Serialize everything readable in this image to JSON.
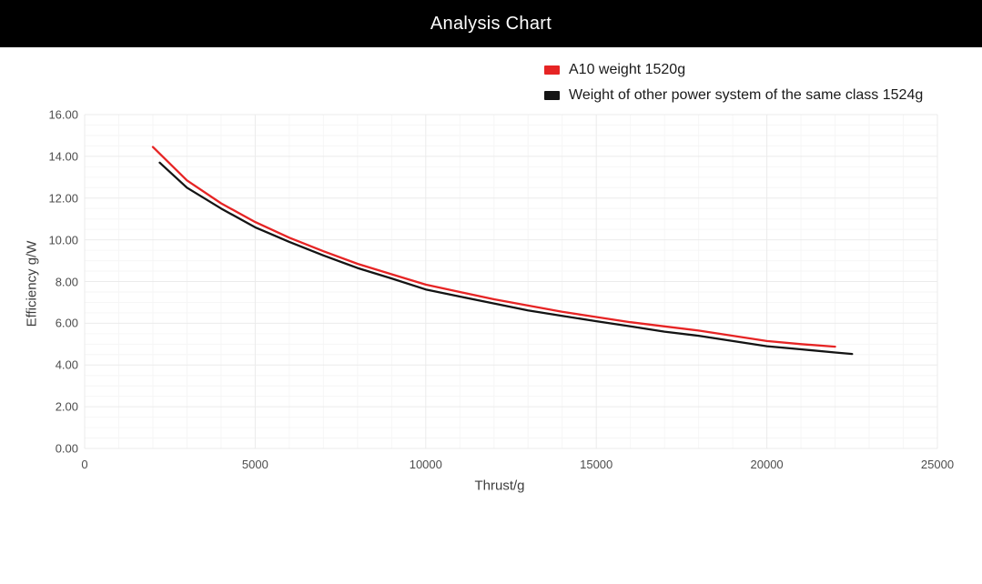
{
  "header": {
    "title": "Analysis Chart"
  },
  "colors": {
    "header_bg": "#000000",
    "header_text": "#ffffff",
    "series_red": "#e62424",
    "series_black": "#141414",
    "grid_major": "#ebebeb",
    "grid_minor": "#f6f6f6",
    "tick_text": "#4d4d4d"
  },
  "chart_data": {
    "type": "line",
    "title": "Analysis Chart",
    "xlabel": "Thrust/g",
    "ylabel": "Efficiency g/W",
    "xlim": [
      0,
      25000
    ],
    "ylim": [
      0,
      16
    ],
    "grid": true,
    "legend_position": "top-right",
    "x_ticks": {
      "values": [
        0,
        5000,
        10000,
        15000,
        20000,
        25000
      ],
      "labels": [
        "0",
        "5000",
        "10000",
        "15000",
        "20000",
        "25000"
      ]
    },
    "y_ticks": {
      "values": [
        0,
        2,
        4,
        6,
        8,
        10,
        12,
        14,
        16
      ],
      "labels": [
        "0.00",
        "2.00",
        "4.00",
        "6.00",
        "8.00",
        "10.00",
        "12.00",
        "14.00",
        "16.00"
      ]
    },
    "x_minor_step": 1000,
    "y_minor_step": 0.5,
    "series": [
      {
        "name": "A10 weight 1520g",
        "color": "#e62424",
        "points": [
          [
            2000,
            14.45
          ],
          [
            3000,
            12.85
          ],
          [
            4000,
            11.75
          ],
          [
            5000,
            10.85
          ],
          [
            6000,
            10.1
          ],
          [
            7000,
            9.45
          ],
          [
            8000,
            8.85
          ],
          [
            9000,
            8.35
          ],
          [
            10000,
            7.85
          ],
          [
            11000,
            7.5
          ],
          [
            12000,
            7.15
          ],
          [
            13000,
            6.85
          ],
          [
            14000,
            6.55
          ],
          [
            15000,
            6.3
          ],
          [
            16000,
            6.05
          ],
          [
            17000,
            5.85
          ],
          [
            18000,
            5.65
          ],
          [
            19000,
            5.4
          ],
          [
            20000,
            5.15
          ],
          [
            21000,
            5.0
          ],
          [
            22000,
            4.88
          ]
        ]
      },
      {
        "name": "Weight of other power system of the same class 1524g",
        "color": "#141414",
        "points": [
          [
            2200,
            13.7
          ],
          [
            3000,
            12.5
          ],
          [
            4000,
            11.5
          ],
          [
            5000,
            10.6
          ],
          [
            6000,
            9.9
          ],
          [
            7000,
            9.25
          ],
          [
            8000,
            8.65
          ],
          [
            9000,
            8.15
          ],
          [
            10000,
            7.62
          ],
          [
            11000,
            7.28
          ],
          [
            12000,
            6.95
          ],
          [
            13000,
            6.62
          ],
          [
            14000,
            6.35
          ],
          [
            15000,
            6.1
          ],
          [
            16000,
            5.85
          ],
          [
            17000,
            5.6
          ],
          [
            18000,
            5.4
          ],
          [
            19000,
            5.15
          ],
          [
            20000,
            4.9
          ],
          [
            21000,
            4.75
          ],
          [
            22000,
            4.6
          ],
          [
            22500,
            4.53
          ]
        ]
      }
    ]
  }
}
